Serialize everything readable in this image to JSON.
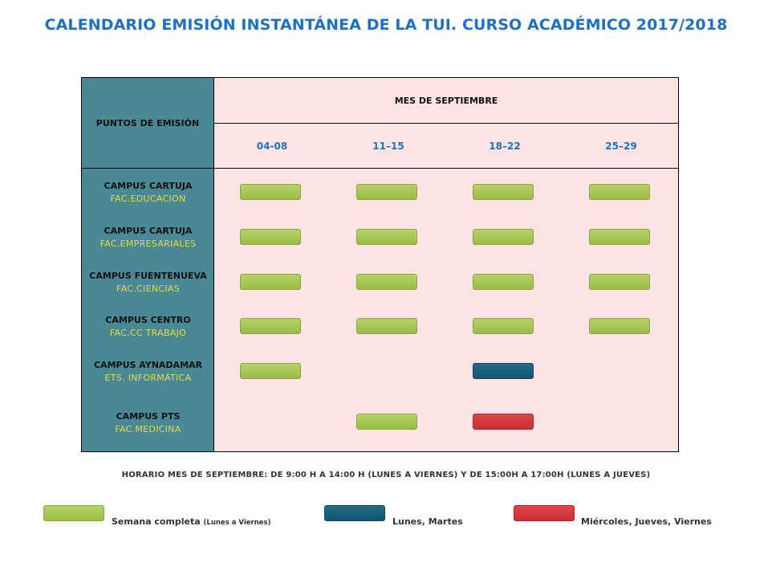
{
  "title": "CALENDARIO EMISIÓN INSTANTÁNEA DE LA TUI. CURSO ACADÉMICO 2017/2018",
  "table": {
    "points_header": "PUNTOS DE EMISIÓN",
    "month_header": "MES DE SEPTIEMBRE",
    "weeks": [
      "04-08",
      "11–15",
      "18–22",
      "25–29"
    ],
    "rows": [
      {
        "campus": "CAMPUS CARTUJA",
        "faculty": "FAC.EDUCACION",
        "weeks": [
          "full",
          "full",
          "full",
          "full"
        ]
      },
      {
        "campus": "CAMPUS CARTUJA",
        "faculty": "FAC.EMPRESARIALES",
        "weeks": [
          "full",
          "full",
          "full",
          "full"
        ]
      },
      {
        "campus": "CAMPUS FUENTENUEVA",
        "faculty": "FAC.CIENCIAS",
        "weeks": [
          "full",
          "full",
          "full",
          "full"
        ]
      },
      {
        "campus": "CAMPUS CENTRO",
        "faculty": "FAC.CC TRABAJO",
        "weeks": [
          "full",
          "full",
          "full",
          "full"
        ]
      },
      {
        "campus": "CAMPUS AYNADAMAR",
        "faculty": "ETS. INFORMÁTICA",
        "weeks": [
          "full",
          "",
          "mon-tue",
          ""
        ]
      },
      {
        "campus": "CAMPUS PTS",
        "faculty": "FAC.MEDICINA",
        "weeks": [
          "",
          "full",
          "wed-fri",
          ""
        ]
      }
    ]
  },
  "schedule": "HORARIO MES DE SEPTIEMBRE: DE 9:00 H A 14:00 H (LUNES A VIERNES)  Y DE 15:00H A 17:00H (LUNES A JUEVES)",
  "legend": {
    "full": {
      "label": "Semana completa",
      "note": "(Lunes a Viernes)",
      "color": "#a4c654"
    },
    "mon_tue": {
      "label": "Lunes, Martes",
      "color": "#165f79"
    },
    "wed_fri": {
      "label": "Miércoles, Jueves, Viernes",
      "color": "#d83a3e"
    }
  },
  "colors": {
    "title": "#1f70c1",
    "left_column": "#4a8896",
    "table_bg": "#fbe4e3",
    "faculty_text": "#e4dc3a"
  }
}
